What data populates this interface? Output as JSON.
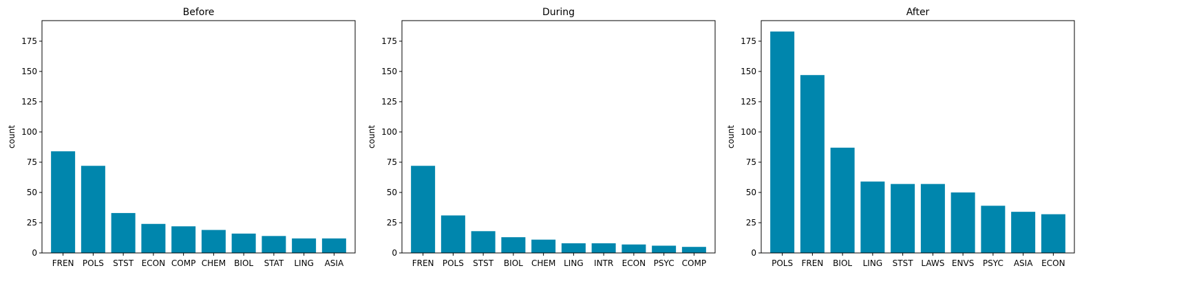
{
  "colors": {
    "bar": "#0086AD",
    "axis": "#000000"
  },
  "chart_data": [
    {
      "type": "bar",
      "title": "Before",
      "xlabel": "",
      "ylabel": "count",
      "ylim": [
        0,
        192
      ],
      "yticks": [
        0,
        25,
        50,
        75,
        100,
        125,
        150,
        175
      ],
      "grid": false,
      "categories": [
        "FREN",
        "POLS",
        "STST",
        "ECON",
        "COMP",
        "CHEM",
        "BIOL",
        "STAT",
        "LING",
        "ASIA"
      ],
      "values": [
        84,
        72,
        33,
        24,
        22,
        19,
        16,
        14,
        12,
        12
      ]
    },
    {
      "type": "bar",
      "title": "During",
      "xlabel": "",
      "ylabel": "count",
      "ylim": [
        0,
        192
      ],
      "yticks": [
        0,
        25,
        50,
        75,
        100,
        125,
        150,
        175
      ],
      "grid": false,
      "categories": [
        "FREN",
        "POLS",
        "STST",
        "BIOL",
        "CHEM",
        "LING",
        "INTR",
        "ECON",
        "PSYC",
        "COMP"
      ],
      "values": [
        72,
        31,
        18,
        13,
        11,
        8,
        8,
        7,
        6,
        5
      ]
    },
    {
      "type": "bar",
      "title": "After",
      "xlabel": "",
      "ylabel": "count",
      "ylim": [
        0,
        192
      ],
      "yticks": [
        0,
        25,
        50,
        75,
        100,
        125,
        150,
        175
      ],
      "grid": false,
      "categories": [
        "POLS",
        "FREN",
        "BIOL",
        "LING",
        "STST",
        "LAWS",
        "ENVS",
        "PSYC",
        "ASIA",
        "ECON"
      ],
      "values": [
        183,
        147,
        87,
        59,
        57,
        57,
        50,
        39,
        34,
        32
      ]
    }
  ]
}
